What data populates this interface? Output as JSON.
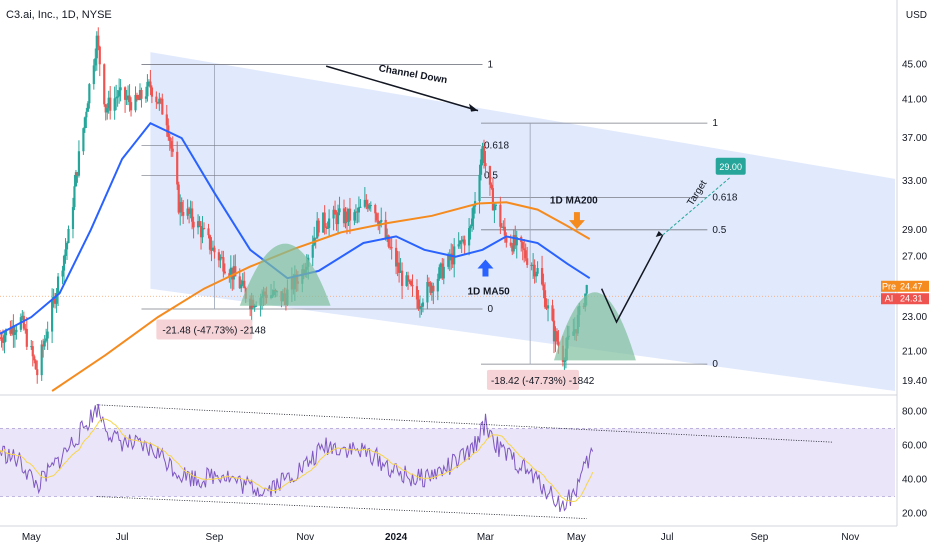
{
  "chart_data": {
    "type": "candlestick",
    "title": "C3.ai, Inc., 1D, NYSE",
    "currency": "USD",
    "price_axis": {
      "ticks": [
        "45.00",
        "41.00",
        "37.00",
        "33.00",
        "29.00",
        "27.00",
        "25.00",
        "23.00",
        "21.00",
        "19.40"
      ],
      "scale": "log",
      "range": [
        18.8,
        52.0
      ]
    },
    "rsi_axis": {
      "ticks": [
        "80.00",
        "60.00",
        "40.00",
        "20.00"
      ],
      "range": [
        15,
        88
      ],
      "band": [
        30,
        70
      ]
    },
    "x_axis": {
      "months": [
        "May",
        "Jul",
        "Sep",
        "Nov",
        "2024",
        "Mar",
        "May",
        "Jul",
        "Sep",
        "Nov"
      ],
      "dates": [
        "2023-05-01",
        "2023-07-01",
        "2023-09-01",
        "2023-11-01",
        "2024-01-01",
        "2024-03-01",
        "2024-05-01",
        "2024-07-01",
        "2024-09-01",
        "2024-11-01"
      ],
      "range": [
        "2023-04-10",
        "2024-12-01"
      ]
    },
    "price_series": [
      [
        "2023-04-10",
        21.8
      ],
      [
        "2023-04-24",
        22.8
      ],
      [
        "2023-05-05",
        19.8
      ],
      [
        "2023-05-15",
        23.5
      ],
      [
        "2023-05-26",
        28.5
      ],
      [
        "2023-06-05",
        38.0
      ],
      [
        "2023-06-14",
        48.0
      ],
      [
        "2023-06-20",
        40.0
      ],
      [
        "2023-06-28",
        41.5
      ],
      [
        "2023-07-10",
        40.5
      ],
      [
        "2023-07-20",
        42.5
      ],
      [
        "2023-07-31",
        39.0
      ],
      [
        "2023-08-08",
        31.0
      ],
      [
        "2023-08-20",
        29.5
      ],
      [
        "2023-08-31",
        27.5
      ],
      [
        "2023-09-12",
        26.0
      ],
      [
        "2023-09-25",
        24.0
      ],
      [
        "2023-10-06",
        24.5
      ],
      [
        "2023-10-18",
        24.2
      ],
      [
        "2023-10-30",
        26.0
      ],
      [
        "2023-11-10",
        29.5
      ],
      [
        "2023-11-22",
        30.0
      ],
      [
        "2023-12-04",
        30.0
      ],
      [
        "2023-12-15",
        31.5
      ],
      [
        "2023-12-26",
        28.0
      ],
      [
        "2024-01-05",
        25.5
      ],
      [
        "2024-01-16",
        24.0
      ],
      [
        "2024-01-28",
        25.5
      ],
      [
        "2024-02-08",
        27.0
      ],
      [
        "2024-02-20",
        29.0
      ],
      [
        "2024-02-28",
        36.0
      ],
      [
        "2024-03-04",
        32.0
      ],
      [
        "2024-03-14",
        28.5
      ],
      [
        "2024-03-25",
        27.5
      ],
      [
        "2024-04-05",
        26.0
      ],
      [
        "2024-04-16",
        22.0
      ],
      [
        "2024-04-22",
        20.8
      ],
      [
        "2024-05-01",
        22.5
      ],
      [
        "2024-05-08",
        24.8
      ]
    ],
    "rsi_series": [
      [
        "2023-04-10",
        57
      ],
      [
        "2023-04-24",
        50
      ],
      [
        "2023-05-05",
        36
      ],
      [
        "2023-05-20",
        52
      ],
      [
        "2023-06-05",
        70
      ],
      [
        "2023-06-14",
        82
      ],
      [
        "2023-06-25",
        64
      ],
      [
        "2023-07-10",
        60
      ],
      [
        "2023-07-25",
        56
      ],
      [
        "2023-08-08",
        44
      ],
      [
        "2023-08-22",
        40
      ],
      [
        "2023-09-06",
        44
      ],
      [
        "2023-09-20",
        37
      ],
      [
        "2023-10-05",
        34
      ],
      [
        "2023-10-18",
        40
      ],
      [
        "2023-11-01",
        48
      ],
      [
        "2023-11-15",
        60
      ],
      [
        "2023-12-01",
        58
      ],
      [
        "2023-12-15",
        55
      ],
      [
        "2024-01-01",
        44
      ],
      [
        "2024-01-15",
        40
      ],
      [
        "2024-02-01",
        45
      ],
      [
        "2024-02-20",
        56
      ],
      [
        "2024-03-01",
        73
      ],
      [
        "2024-03-10",
        58
      ],
      [
        "2024-03-25",
        48
      ],
      [
        "2024-04-10",
        35
      ],
      [
        "2024-04-22",
        24
      ],
      [
        "2024-05-01",
        35
      ],
      [
        "2024-05-12",
        57
      ]
    ],
    "ma50": [
      [
        "2023-04-10",
        22.0
      ],
      [
        "2023-05-01",
        23.0
      ],
      [
        "2023-05-20",
        24.5
      ],
      [
        "2023-06-10",
        29.0
      ],
      [
        "2023-07-01",
        35.0
      ],
      [
        "2023-07-20",
        38.5
      ],
      [
        "2023-08-10",
        37.0
      ],
      [
        "2023-09-01",
        32.0
      ],
      [
        "2023-09-25",
        27.5
      ],
      [
        "2023-10-20",
        25.5
      ],
      [
        "2023-11-10",
        26.0
      ],
      [
        "2023-12-10",
        28.0
      ],
      [
        "2024-01-01",
        28.5
      ],
      [
        "2024-01-20",
        27.5
      ],
      [
        "2024-02-10",
        27.0
      ],
      [
        "2024-02-28",
        27.5
      ],
      [
        "2024-03-15",
        28.5
      ],
      [
        "2024-04-05",
        28.0
      ],
      [
        "2024-04-25",
        26.5
      ],
      [
        "2024-05-10",
        25.5
      ]
    ],
    "ma200": [
      [
        "2023-05-15",
        18.9
      ],
      [
        "2023-06-20",
        20.8
      ],
      [
        "2023-07-25",
        23.0
      ],
      [
        "2023-08-25",
        24.8
      ],
      [
        "2023-09-25",
        26.3
      ],
      [
        "2023-10-25",
        27.6
      ],
      [
        "2023-11-25",
        28.8
      ],
      [
        "2023-12-25",
        29.5
      ],
      [
        "2024-01-25",
        30.1
      ],
      [
        "2024-02-25",
        31.1
      ],
      [
        "2024-03-15",
        31.2
      ],
      [
        "2024-04-05",
        30.6
      ],
      [
        "2024-04-25",
        29.3
      ],
      [
        "2024-05-10",
        28.3
      ]
    ],
    "current_price": {
      "pre": "24.47",
      "ai": "24.31",
      "pre_label": "Pre",
      "ai_label": "AI"
    },
    "channel": {
      "label": "Channel Down"
    },
    "fib_upper": [
      {
        "label": "1",
        "price": 45.0
      },
      {
        "label": "0",
        "price": 23.5
      }
    ],
    "fib_lower": [
      {
        "label": "1",
        "price": 38.5
      },
      {
        "label": "0.618",
        "price": 31.6
      },
      {
        "label": "0.5",
        "price": 29.0
      },
      {
        "label": "0",
        "price": 20.3
      }
    ],
    "fib_inner": [
      {
        "label": "0.618",
        "price": 36.3
      },
      {
        "label": "0.5",
        "price": 33.5
      }
    ],
    "measure_boxes": [
      {
        "text": "-21.48 (-47.73%) -2148"
      },
      {
        "text": "-18.42 (-47.73%) -1842"
      }
    ],
    "annotations": {
      "ma200_label": "1D MA200",
      "ma50_label": "1D MA50",
      "target_label": "Target",
      "target_value": "29.00"
    },
    "colors": {
      "channel_fill": "#dce6fb",
      "ma50": "#2962ff",
      "ma200": "#f58b1f",
      "rsi": "#7e57c2",
      "rsi_ma": "#f5d54a",
      "rsi_band": "#ebe5f9",
      "up": "#26a69a",
      "down": "#ef5350",
      "target_badge": "#26a69a",
      "dome": "#7fbf9c",
      "pre_badge": "#f58b1f",
      "ai_badge": "#ef5350"
    }
  }
}
